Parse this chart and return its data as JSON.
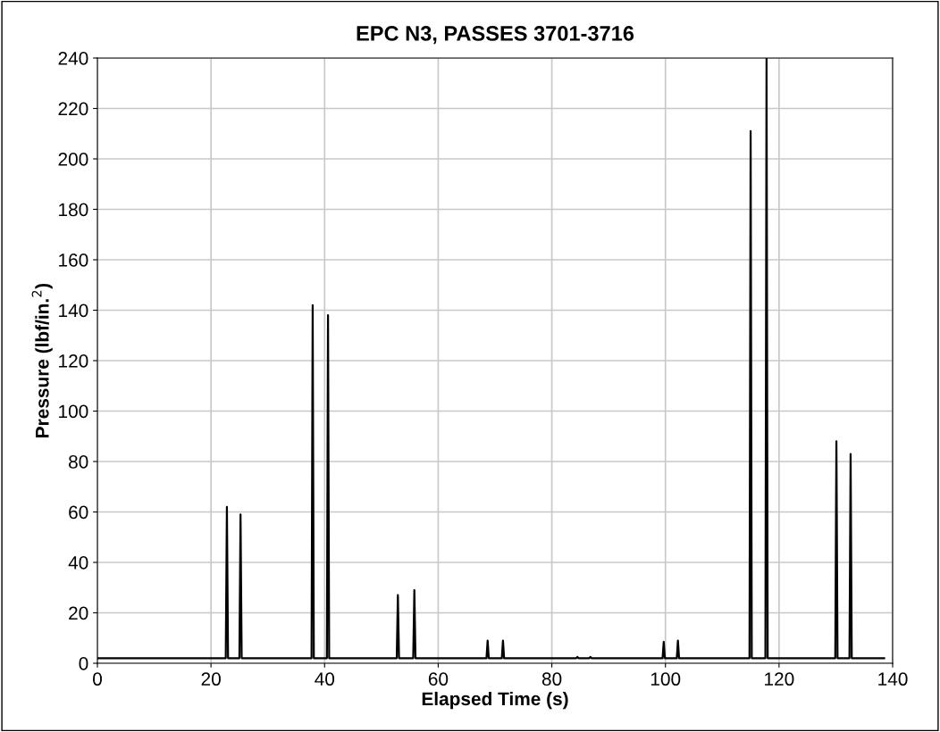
{
  "chart_data": {
    "type": "line",
    "title": "EPC N3, PASSES 3701-3716",
    "xlabel": "Elapsed Time (s)",
    "ylabel": "Pressure (lbf/in.$^{2}$)",
    "x": [
      0,
      22.6,
      22.8,
      23.0,
      25.0,
      25.2,
      25.4,
      37.7,
      37.9,
      38.1,
      40.4,
      40.6,
      40.8,
      52.7,
      52.9,
      53.1,
      55.6,
      55.8,
      56.0,
      68.5,
      68.7,
      68.9,
      71.2,
      71.4,
      71.6,
      84.3,
      84.5,
      84.7,
      86.6,
      86.8,
      87.0,
      99.5,
      99.7,
      99.9,
      102.0,
      102.2,
      102.4,
      114.8,
      115.0,
      115.2,
      117.6,
      117.8,
      118.0,
      129.9,
      130.1,
      130.3,
      132.4,
      132.6,
      132.8,
      138.5
    ],
    "series": [
      {
        "color": "#000000",
        "values": [
          2,
          2,
          62,
          2,
          2,
          59,
          2,
          2,
          142,
          2,
          2,
          138,
          2,
          2,
          27,
          2,
          2,
          29,
          2,
          2,
          9,
          2,
          2,
          9,
          2,
          2,
          2.5,
          2,
          2,
          2.5,
          2,
          2,
          8.5,
          2,
          2,
          9,
          2,
          2,
          211,
          2,
          2,
          240,
          2,
          2,
          88,
          2,
          2,
          83,
          2,
          2
        ]
      }
    ],
    "xlim": [
      0,
      140
    ],
    "xticks": [
      0,
      20,
      40,
      60,
      80,
      100,
      120,
      140
    ],
    "ylim": [
      0,
      240
    ],
    "yticks": [
      0,
      20,
      40,
      60,
      80,
      100,
      120,
      140,
      160,
      180,
      200,
      220,
      240
    ],
    "grid": true,
    "legend": false,
    "marker": "none",
    "line_style": "solid"
  }
}
